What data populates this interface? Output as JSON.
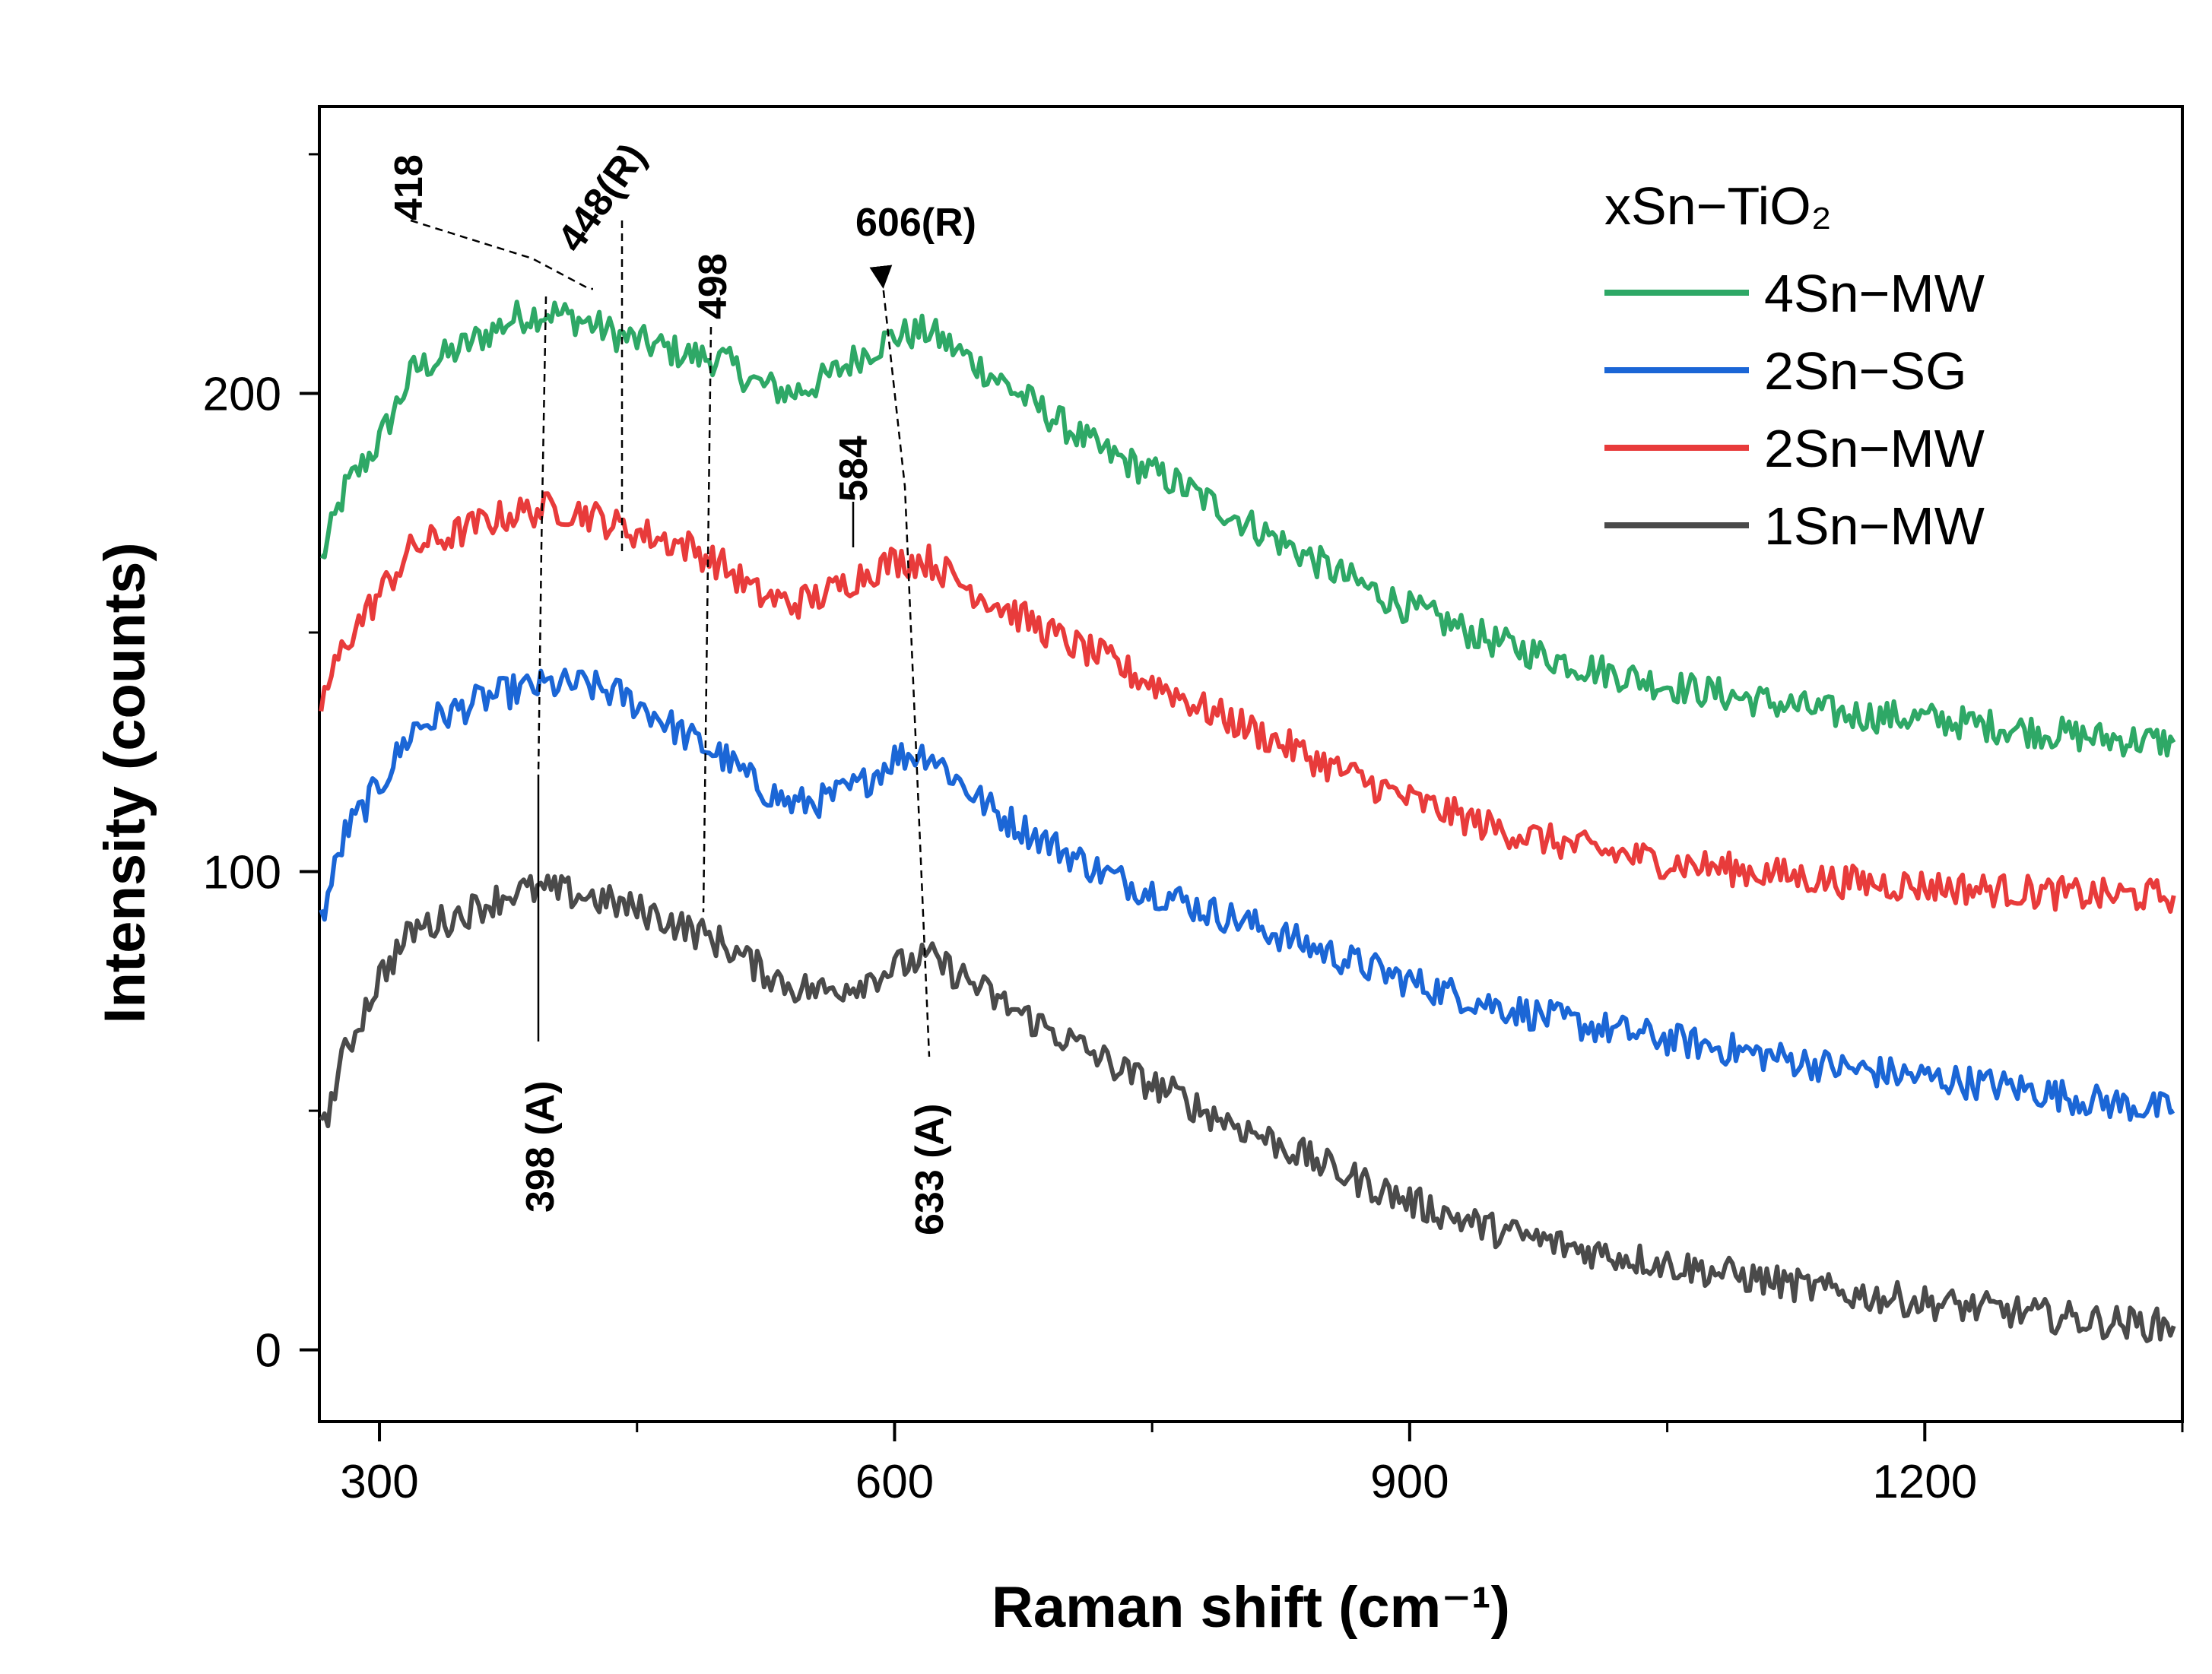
{
  "chart_data": {
    "type": "line",
    "title": "",
    "xlabel": "Raman shift (cm⁻¹)",
    "ylabel": "Intensity (counts)",
    "xlim": [
      265,
      1350
    ],
    "ylim": [
      -15,
      260
    ],
    "xticks": [
      300,
      600,
      900,
      1200
    ],
    "yticks": [
      0,
      100,
      200
    ],
    "grid": false,
    "legend_title": "xSn−TiO₂",
    "legend_position": "top-right",
    "series": [
      {
        "name": "4Sn−MW",
        "color": "#2ea866",
        "x": [
          266,
          280,
          300,
          320,
          340,
          360,
          380,
          400,
          420,
          440,
          460,
          480,
          500,
          520,
          540,
          560,
          580,
          600,
          620,
          640,
          660,
          680,
          700,
          720,
          740,
          760,
          780,
          800,
          830,
          860,
          900,
          950,
          1000,
          1050,
          1100,
          1150,
          1200,
          1250,
          1300,
          1345
        ],
        "y": [
          165,
          180,
          190,
          205,
          208,
          212,
          216,
          217,
          215,
          212,
          210,
          208,
          207,
          202,
          200,
          203,
          208,
          212,
          213,
          208,
          203,
          198,
          193,
          188,
          185,
          182,
          178,
          174,
          168,
          162,
          155,
          148,
          143,
          139,
          136,
          133,
          132,
          130,
          128,
          127
        ]
      },
      {
        "name": "2Sn−SG",
        "color": "#1b66d6",
        "x": [
          266,
          280,
          300,
          320,
          340,
          360,
          380,
          400,
          420,
          440,
          460,
          480,
          500,
          520,
          540,
          560,
          580,
          600,
          620,
          640,
          660,
          680,
          700,
          720,
          740,
          760,
          780,
          800,
          830,
          860,
          900,
          950,
          1000,
          1050,
          1100,
          1150,
          1200,
          1250,
          1300,
          1345
        ],
        "y": [
          90,
          108,
          118,
          130,
          133,
          136,
          138,
          139,
          139,
          137,
          133,
          128,
          124,
          118,
          114,
          115,
          118,
          124,
          125,
          118,
          112,
          108,
          104,
          100,
          97,
          95,
          92,
          90,
          86,
          82,
          77,
          72,
          68,
          65,
          62,
          59,
          57,
          55,
          52,
          50
        ]
      },
      {
        "name": "2Sn−MW",
        "color": "#e83b3b",
        "x": [
          266,
          280,
          300,
          320,
          340,
          360,
          380,
          400,
          420,
          440,
          460,
          480,
          500,
          520,
          540,
          560,
          580,
          600,
          620,
          640,
          660,
          680,
          700,
          720,
          740,
          760,
          780,
          800,
          830,
          860,
          900,
          950,
          1000,
          1050,
          1100,
          1150,
          1200,
          1250,
          1300,
          1345
        ],
        "y": [
          135,
          148,
          158,
          168,
          170,
          173,
          175,
          176,
          175,
          172,
          170,
          168,
          164,
          158,
          156,
          158,
          162,
          165,
          165,
          160,
          156,
          152,
          148,
          145,
          141,
          138,
          134,
          131,
          126,
          121,
          115,
          109,
          105,
          102,
          100,
          98,
          97,
          96,
          95,
          95
        ]
      },
      {
        "name": "1Sn−MW",
        "color": "#4a4a4a",
        "x": [
          266,
          280,
          300,
          320,
          340,
          360,
          380,
          400,
          420,
          440,
          460,
          480,
          500,
          520,
          540,
          560,
          580,
          600,
          620,
          640,
          660,
          680,
          700,
          720,
          740,
          760,
          780,
          800,
          830,
          860,
          900,
          950,
          1000,
          1050,
          1100,
          1150,
          1200,
          1250,
          1300,
          1345
        ],
        "y": [
          45,
          62,
          78,
          88,
          90,
          93,
          96,
          96,
          95,
          93,
          91,
          88,
          85,
          80,
          76,
          75,
          77,
          80,
          82,
          78,
          73,
          69,
          65,
          61,
          57,
          54,
          50,
          47,
          42,
          37,
          31,
          25,
          21,
          18,
          15,
          12,
          10,
          8,
          6,
          5
        ]
      }
    ],
    "annotations": [
      {
        "text": "418",
        "x": 418
      },
      {
        "text": "448(R)",
        "x": 448
      },
      {
        "text": "498",
        "x": 498
      },
      {
        "text": "606(R)",
        "x": 606
      },
      {
        "text": "584",
        "x": 584
      },
      {
        "text": "398 (A)",
        "x": 398
      },
      {
        "text": "633 (A)",
        "x": 633
      }
    ]
  }
}
